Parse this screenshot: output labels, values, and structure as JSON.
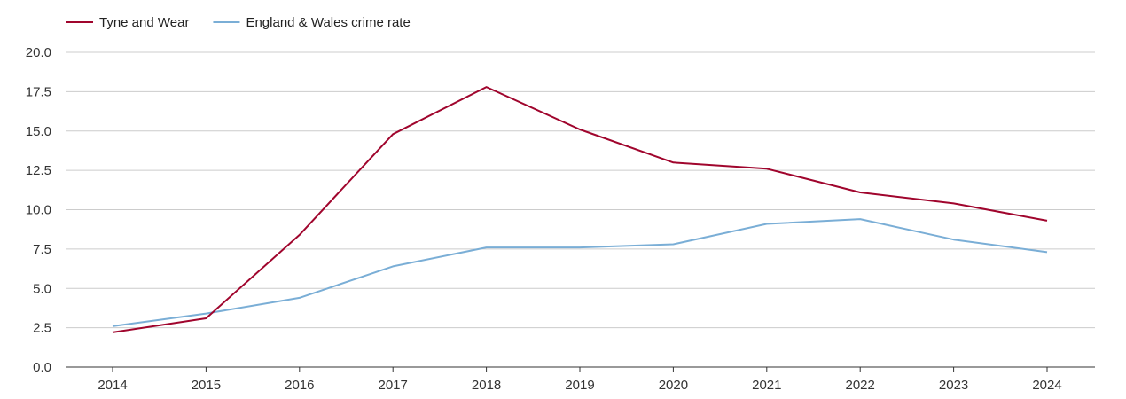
{
  "chart_data": {
    "type": "line",
    "title": "",
    "xlabel": "",
    "ylabel": "",
    "x": [
      "2014",
      "2015",
      "2016",
      "2017",
      "2018",
      "2019",
      "2020",
      "2021",
      "2022",
      "2023",
      "2024"
    ],
    "ylim": [
      0,
      20
    ],
    "yticks": [
      "0.0",
      "2.5",
      "5.0",
      "7.5",
      "10.0",
      "12.5",
      "15.0",
      "17.5",
      "20.0"
    ],
    "grid": true,
    "legend_position": "top-left",
    "series": [
      {
        "name": "Tyne and Wear",
        "color": "#a0052d",
        "values": [
          2.2,
          3.1,
          8.4,
          14.8,
          17.8,
          15.1,
          13.0,
          12.6,
          11.1,
          10.4,
          9.3
        ]
      },
      {
        "name": "England & Wales crime rate",
        "color": "#7aaed6",
        "values": [
          2.6,
          3.4,
          4.4,
          6.4,
          7.6,
          7.6,
          7.8,
          9.1,
          9.4,
          8.1,
          7.3
        ]
      }
    ]
  }
}
